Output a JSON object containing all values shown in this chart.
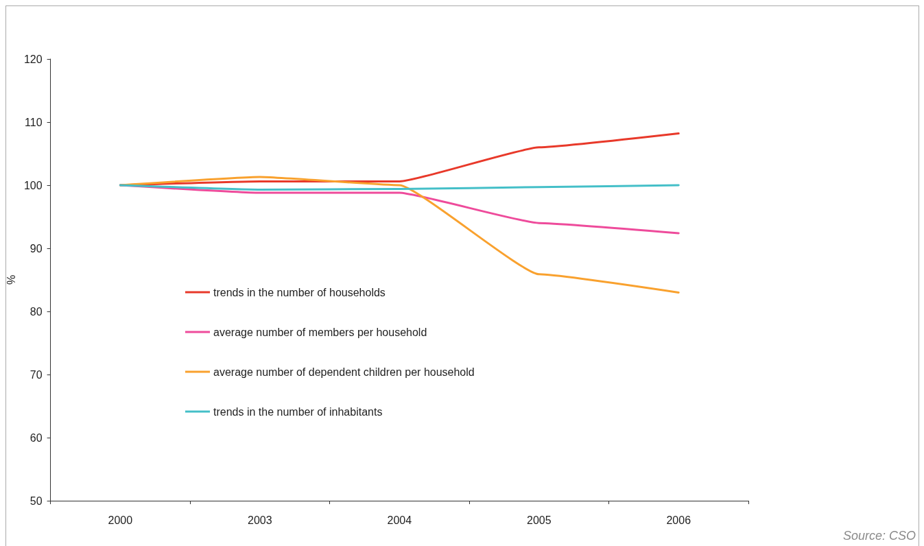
{
  "chart_data": {
    "type": "line",
    "categories": [
      "2000",
      "2003",
      "2004",
      "2005",
      "2006"
    ],
    "ylabel": "%",
    "ylim": [
      50,
      120
    ],
    "yticks": [
      50,
      60,
      70,
      80,
      90,
      100,
      110,
      120
    ],
    "legend": "left",
    "series": [
      {
        "name": "trends in the number of households",
        "color": "#e8392a",
        "values": [
          100,
          100.6,
          100.6,
          106,
          108.2
        ]
      },
      {
        "name": "average number of members per household",
        "color": "#ee4b9b",
        "values": [
          100,
          98.8,
          98.8,
          94,
          92.4
        ]
      },
      {
        "name": "average number of dependent children per household",
        "color": "#f9a12e",
        "values": [
          100,
          101.3,
          100,
          85.9,
          83
        ]
      },
      {
        "name": "trends in the number of inhabitants",
        "color": "#44bfc8",
        "values": [
          100,
          99.3,
          99.4,
          99.7,
          100
        ]
      }
    ],
    "annotations": [
      "Source: CSO"
    ]
  }
}
